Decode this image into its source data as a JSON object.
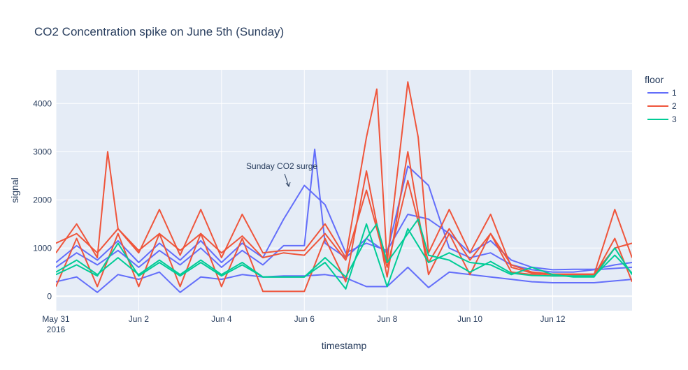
{
  "chart_data": {
    "type": "line",
    "title": "CO2 Concentration spike on June 5th (Sunday)",
    "xlabel": "timestamp",
    "ylabel": "signal",
    "x_range": [
      "2016-05-31T00:00",
      "2016-06-13T22:00"
    ],
    "ylim": [
      -300,
      4700
    ],
    "x_ticks": [
      {
        "date": "2016-05-31",
        "label": "May 31",
        "sublabel": "2016"
      },
      {
        "date": "2016-06-02",
        "label": "Jun 2"
      },
      {
        "date": "2016-06-04",
        "label": "Jun 4"
      },
      {
        "date": "2016-06-06",
        "label": "Jun 6"
      },
      {
        "date": "2016-06-08",
        "label": "Jun 8"
      },
      {
        "date": "2016-06-10",
        "label": "Jun 10"
      },
      {
        "date": "2016-06-12",
        "label": "Jun 12"
      }
    ],
    "y_ticks": [
      0,
      1000,
      2000,
      3000,
      4000
    ],
    "grid": true,
    "background": "#e5ecf6",
    "legend": {
      "title": "floor",
      "position": "right"
    },
    "annotation": {
      "text": "Sunday CO2 surge",
      "x": "2016-06-05T15:00",
      "y": 2250
    },
    "series": [
      {
        "name": "1",
        "color": "#636efa",
        "note": "representative sensor traces for floor 1",
        "lines": [
          {
            "x": [
              "2016-05-31T00:00",
              "2016-05-31T12:00",
              "2016-06-01T00:00",
              "2016-06-01T12:00",
              "2016-06-02T00:00",
              "2016-06-02T12:00",
              "2016-06-03T00:00",
              "2016-06-03T12:00",
              "2016-06-04T00:00",
              "2016-06-04T12:00",
              "2016-06-05T00:00",
              "2016-06-05T12:00",
              "2016-06-06T00:00",
              "2016-06-06T12:00",
              "2016-06-07T00:00",
              "2016-06-07T12:00",
              "2016-06-08T00:00",
              "2016-06-08T12:00",
              "2016-06-09T00:00",
              "2016-06-09T12:00",
              "2016-06-10T00:00",
              "2016-06-10T12:00",
              "2016-06-11T00:00",
              "2016-06-11T12:00",
              "2016-06-12T00:00",
              "2016-06-12T12:00",
              "2016-06-13T00:00",
              "2016-06-13T12:00",
              "2016-06-13T22:00"
            ],
            "y": [
              700,
              1050,
              750,
              1150,
              700,
              1100,
              750,
              1150,
              700,
              1100,
              800,
              1600,
              2300,
              1900,
              900,
              1100,
              950,
              1700,
              1600,
              1300,
              900,
              1150,
              750,
              600,
              550,
              560,
              560,
              650,
              700
            ]
          },
          {
            "x": [
              "2016-05-31T00:00",
              "2016-05-31T12:00",
              "2016-06-01T00:00",
              "2016-06-01T12:00",
              "2016-06-02T00:00",
              "2016-06-02T12:00",
              "2016-06-03T00:00",
              "2016-06-03T12:00",
              "2016-06-04T00:00",
              "2016-06-04T12:00",
              "2016-06-05T00:00",
              "2016-06-05T12:00",
              "2016-06-06T00:00",
              "2016-06-06T06:00",
              "2016-06-06T12:00",
              "2016-06-07T00:00",
              "2016-06-07T12:00",
              "2016-06-08T00:00",
              "2016-06-08T12:00",
              "2016-06-09T00:00",
              "2016-06-09T12:00",
              "2016-06-10T00:00",
              "2016-06-10T12:00",
              "2016-06-11T00:00",
              "2016-06-11T12:00",
              "2016-06-12T00:00",
              "2016-06-12T12:00",
              "2016-06-13T00:00",
              "2016-06-13T22:00"
            ],
            "y": [
              600,
              900,
              650,
              950,
              600,
              950,
              650,
              1000,
              600,
              950,
              650,
              1050,
              1050,
              3050,
              1100,
              800,
              1200,
              900,
              2700,
              2300,
              1000,
              800,
              900,
              650,
              550,
              500,
              500,
              550,
              600
            ]
          },
          {
            "x": [
              "2016-05-31T00:00",
              "2016-05-31T12:00",
              "2016-06-01T00:00",
              "2016-06-01T12:00",
              "2016-06-02T00:00",
              "2016-06-02T12:00",
              "2016-06-03T00:00",
              "2016-06-03T12:00",
              "2016-06-04T00:00",
              "2016-06-04T12:00",
              "2016-06-05T00:00",
              "2016-06-05T12:00",
              "2016-06-06T00:00",
              "2016-06-06T12:00",
              "2016-06-07T00:00",
              "2016-06-07T12:00",
              "2016-06-08T00:00",
              "2016-06-08T12:00",
              "2016-06-09T00:00",
              "2016-06-09T12:00",
              "2016-06-10T00:00",
              "2016-06-10T12:00",
              "2016-06-11T00:00",
              "2016-06-11T12:00",
              "2016-06-12T00:00",
              "2016-06-12T12:00",
              "2016-06-13T00:00",
              "2016-06-13T22:00"
            ],
            "y": [
              300,
              400,
              80,
              450,
              350,
              500,
              80,
              400,
              350,
              450,
              400,
              420,
              420,
              450,
              380,
              200,
              200,
              600,
              180,
              500,
              450,
              400,
              350,
              300,
              280,
              280,
              280,
              350
            ]
          }
        ]
      },
      {
        "name": "2",
        "color": "#ef553b",
        "note": "representative sensor traces for floor 2",
        "lines": [
          {
            "x": [
              "2016-05-31T00:00",
              "2016-05-31T12:00",
              "2016-06-01T00:00",
              "2016-06-01T06:00",
              "2016-06-01T12:00",
              "2016-06-02T00:00",
              "2016-06-02T12:00",
              "2016-06-03T00:00",
              "2016-06-03T12:00",
              "2016-06-04T00:00",
              "2016-06-04T12:00",
              "2016-06-05T00:00",
              "2016-06-05T12:00",
              "2016-06-06T00:00",
              "2016-06-06T12:00",
              "2016-06-07T00:00",
              "2016-06-07T12:00",
              "2016-06-07T18:00",
              "2016-06-08T00:00",
              "2016-06-08T12:00",
              "2016-06-08T18:00",
              "2016-06-09T00:00",
              "2016-06-09T12:00",
              "2016-06-10T00:00",
              "2016-06-10T12:00",
              "2016-06-11T00:00",
              "2016-06-11T12:00",
              "2016-06-12T00:00",
              "2016-06-12T12:00",
              "2016-06-13T00:00",
              "2016-06-13T12:00",
              "2016-06-13T22:00"
            ],
            "y": [
              900,
              1500,
              800,
              3000,
              1400,
              900,
              1800,
              850,
              1800,
              800,
              1700,
              900,
              950,
              950,
              1500,
              800,
              3300,
              4300,
              700,
              4450,
              3300,
              900,
              1800,
              900,
              1700,
              600,
              480,
              450,
              450,
              450,
              1800,
              800
            ]
          },
          {
            "x": [
              "2016-05-31T00:00",
              "2016-05-31T12:00",
              "2016-06-01T00:00",
              "2016-06-01T12:00",
              "2016-06-02T00:00",
              "2016-06-02T12:00",
              "2016-06-03T00:00",
              "2016-06-03T12:00",
              "2016-06-04T00:00",
              "2016-06-04T12:00",
              "2016-06-05T00:00",
              "2016-06-05T12:00",
              "2016-06-06T00:00",
              "2016-06-06T12:00",
              "2016-06-07T00:00",
              "2016-06-07T12:00",
              "2016-06-08T00:00",
              "2016-06-08T12:00",
              "2016-06-09T00:00",
              "2016-06-09T12:00",
              "2016-06-10T00:00",
              "2016-06-10T12:00",
              "2016-06-11T00:00",
              "2016-06-11T12:00",
              "2016-06-12T00:00",
              "2016-06-12T12:00",
              "2016-06-13T00:00",
              "2016-06-13T12:00",
              "2016-06-13T22:00"
            ],
            "y": [
              200,
              1200,
              200,
              1300,
              200,
              1300,
              200,
              1300,
              200,
              1200,
              100,
              100,
              100,
              1200,
              300,
              2600,
              400,
              3000,
              450,
              1300,
              450,
              1300,
              500,
              450,
              420,
              420,
              420,
              1200,
              300
            ]
          },
          {
            "x": [
              "2016-05-31T00:00",
              "2016-05-31T12:00",
              "2016-06-01T00:00",
              "2016-06-01T12:00",
              "2016-06-02T00:00",
              "2016-06-02T12:00",
              "2016-06-03T00:00",
              "2016-06-03T12:00",
              "2016-06-04T00:00",
              "2016-06-04T12:00",
              "2016-06-05T00:00",
              "2016-06-05T12:00",
              "2016-06-06T00:00",
              "2016-06-06T12:00",
              "2016-06-07T00:00",
              "2016-06-07T12:00",
              "2016-06-08T00:00",
              "2016-06-08T12:00",
              "2016-06-09T00:00",
              "2016-06-09T12:00",
              "2016-06-10T00:00",
              "2016-06-10T12:00",
              "2016-06-11T00:00",
              "2016-06-11T12:00",
              "2016-06-12T00:00",
              "2016-06-12T12:00",
              "2016-06-13T00:00",
              "2016-06-13T12:00",
              "2016-06-13T22:00"
            ],
            "y": [
              1100,
              1300,
              900,
              1400,
              950,
              1300,
              950,
              1300,
              900,
              1250,
              800,
              900,
              850,
              1300,
              750,
              2200,
              600,
              2400,
              700,
              1400,
              750,
              1300,
              650,
              500,
              460,
              460,
              460,
              1000,
              1100
            ]
          }
        ]
      },
      {
        "name": "3",
        "color": "#00cc96",
        "note": "representative sensor traces for floor 3",
        "lines": [
          {
            "x": [
              "2016-05-31T00:00",
              "2016-05-31T12:00",
              "2016-06-01T00:00",
              "2016-06-01T12:00",
              "2016-06-02T00:00",
              "2016-06-02T12:00",
              "2016-06-03T00:00",
              "2016-06-03T12:00",
              "2016-06-04T00:00",
              "2016-06-04T12:00",
              "2016-06-05T00:00",
              "2016-06-05T12:00",
              "2016-06-06T00:00",
              "2016-06-06T12:00",
              "2016-06-07T00:00",
              "2016-06-07T12:00",
              "2016-06-07T18:00",
              "2016-06-08T00:00",
              "2016-06-08T12:00",
              "2016-06-08T18:00",
              "2016-06-09T00:00",
              "2016-06-09T12:00",
              "2016-06-10T00:00",
              "2016-06-10T12:00",
              "2016-06-11T00:00",
              "2016-06-11T12:00",
              "2016-06-12T00:00",
              "2016-06-12T12:00",
              "2016-06-13T00:00",
              "2016-06-13T12:00",
              "2016-06-13T22:00"
            ],
            "y": [
              500,
              750,
              450,
              800,
              450,
              750,
              450,
              750,
              450,
              700,
              400,
              400,
              400,
              800,
              400,
              1200,
              1500,
              700,
              1300,
              1600,
              850,
              750,
              500,
              720,
              480,
              430,
              420,
              420,
              420,
              850,
              480
            ]
          },
          {
            "x": [
              "2016-05-31T00:00",
              "2016-05-31T12:00",
              "2016-06-01T00:00",
              "2016-06-01T12:00",
              "2016-06-02T00:00",
              "2016-06-02T12:00",
              "2016-06-03T00:00",
              "2016-06-03T12:00",
              "2016-06-04T00:00",
              "2016-06-04T12:00",
              "2016-06-05T00:00",
              "2016-06-05T12:00",
              "2016-06-06T00:00",
              "2016-06-06T12:00",
              "2016-06-07T00:00",
              "2016-06-07T12:00",
              "2016-06-08T00:00",
              "2016-06-08T12:00",
              "2016-06-09T00:00",
              "2016-06-09T12:00",
              "2016-06-10T00:00",
              "2016-06-10T12:00",
              "2016-06-11T00:00",
              "2016-06-11T12:00",
              "2016-06-12T00:00",
              "2016-06-12T12:00",
              "2016-06-13T00:00",
              "2016-06-13T12:00",
              "2016-06-13T22:00"
            ],
            "y": [
              450,
              650,
              420,
              1100,
              420,
              700,
              420,
              700,
              420,
              650,
              400,
              400,
              400,
              700,
              150,
              1500,
              200,
              1400,
              700,
              900,
              700,
              650,
              450,
              600,
              450,
              400,
              400,
              1000,
              450
            ]
          }
        ]
      }
    ]
  }
}
